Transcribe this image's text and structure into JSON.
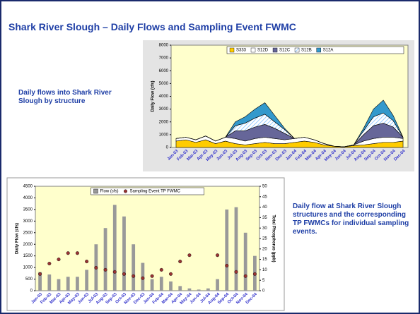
{
  "title": "Shark River Slough – Daily Flows and Sampling Event FWMC",
  "captions": [
    "Daily flows into Shark River Slough by structure",
    "Daily flow at Shark River Slough structures and the corresponding TP FWMCs for individual sampling events."
  ],
  "chart_data": [
    {
      "type": "area",
      "stacked": true,
      "ylabel": "Daily Flow (cfs)",
      "categories": [
        "Jan-03",
        "Feb-03",
        "Mar-03",
        "Apr-03",
        "May-03",
        "Jun-03",
        "Jul-03",
        "Aug-03",
        "Sep-03",
        "Oct-03",
        "Nov-03",
        "Dec-03",
        "Jan-04",
        "Feb-04",
        "Mar-04",
        "Apr-04",
        "May-04",
        "Jun-04",
        "Jul-04",
        "Aug-04",
        "Sep-04",
        "Oct-04",
        "Nov-04",
        "Dec-04"
      ],
      "ylim": [
        0,
        8000
      ],
      "yticks": [
        0,
        1000,
        2000,
        3000,
        4000,
        5000,
        6000,
        7000,
        8000
      ],
      "grid": false,
      "legend": "top-right",
      "series": [
        {
          "name": "S333",
          "color": "#ffcc00",
          "values": [
            500,
            600,
            400,
            600,
            300,
            500,
            300,
            200,
            300,
            400,
            300,
            300,
            400,
            500,
            400,
            200,
            100,
            50,
            150,
            200,
            300,
            400,
            400,
            500
          ]
        },
        {
          "name": "S12D",
          "color": "#ffffff",
          "values": [
            200,
            200,
            200,
            300,
            200,
            300,
            400,
            300,
            400,
            400,
            400,
            300,
            300,
            300,
            200,
            100,
            0,
            0,
            50,
            300,
            400,
            400,
            400,
            200
          ]
        },
        {
          "name": "S12C",
          "color": "#666699",
          "values": [
            0,
            0,
            0,
            0,
            0,
            0,
            600,
            800,
            900,
            1000,
            800,
            500,
            0,
            0,
            0,
            0,
            0,
            0,
            0,
            500,
            1000,
            1100,
            800,
            100
          ]
        },
        {
          "name": "S12B",
          "color": "#cce6ff",
          "values": [
            0,
            0,
            0,
            0,
            0,
            0,
            400,
            600,
            700,
            800,
            500,
            300,
            0,
            0,
            0,
            0,
            0,
            0,
            0,
            300,
            700,
            800,
            500,
            0
          ]
        },
        {
          "name": "S12A",
          "color": "#3399cc",
          "values": [
            0,
            0,
            0,
            0,
            0,
            0,
            300,
            500,
            700,
            900,
            500,
            100,
            0,
            0,
            0,
            0,
            0,
            0,
            0,
            200,
            600,
            1000,
            400,
            0
          ]
        }
      ]
    },
    {
      "type": "bar",
      "ylabel": "Daily Flow (cfs)",
      "y2label": "Total Phosphorus (ppb)",
      "categories": [
        "Jan-03",
        "Feb-03",
        "Mar-03",
        "Apr-03",
        "May-03",
        "Jun-03",
        "Jul-03",
        "Aug-03",
        "Sep-03",
        "Oct-03",
        "Nov-03",
        "Dec-03",
        "Jan-04",
        "Feb-04",
        "Mar-04",
        "Apr-04",
        "May-04",
        "Jun-04",
        "Jul-04",
        "Aug-04",
        "Sep-04",
        "Oct-04",
        "Nov-04",
        "Dec-04"
      ],
      "ylim": [
        0,
        4500
      ],
      "yticks": [
        0,
        500,
        1000,
        1500,
        2000,
        2500,
        3000,
        3500,
        4000,
        4500
      ],
      "y2lim": [
        0,
        50
      ],
      "y2ticks": [
        0,
        5,
        10,
        15,
        20,
        25,
        30,
        35,
        40,
        45,
        50
      ],
      "grid": false,
      "legend": "top",
      "series": [
        {
          "name": "Flow (cfs)",
          "type": "bar",
          "color": "#999999",
          "values": [
            800,
            700,
            500,
            600,
            600,
            900,
            2000,
            2700,
            3700,
            3200,
            2000,
            1200,
            500,
            600,
            400,
            200,
            100,
            50,
            100,
            500,
            3500,
            3600,
            2500,
            1500
          ]
        },
        {
          "name": "Sampling Event TP FWMC",
          "type": "scatter",
          "axis": "y2",
          "color": "#993333",
          "values": [
            8,
            13,
            15,
            18,
            18,
            14,
            11,
            10,
            9,
            8,
            7,
            6,
            7,
            10,
            8,
            14,
            17,
            null,
            null,
            17,
            12,
            9,
            7,
            8
          ]
        }
      ]
    }
  ]
}
